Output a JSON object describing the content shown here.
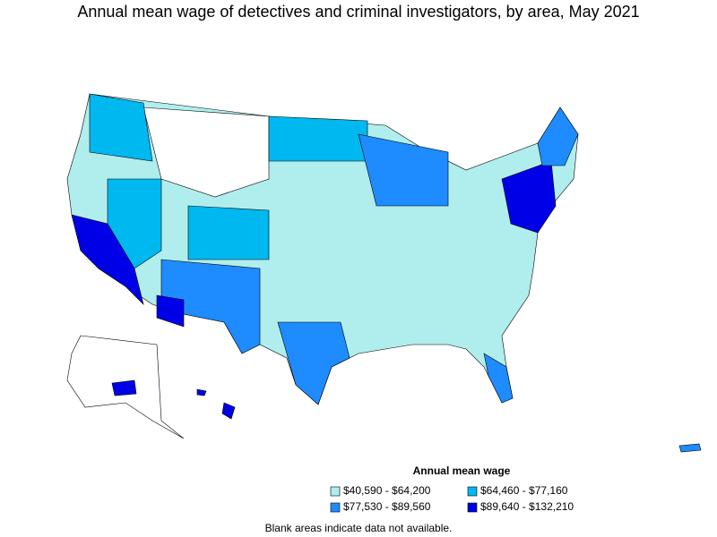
{
  "title": "Annual mean wage of detectives and criminal investigators, by area, May 2021",
  "legend": {
    "title": "Annual mean wage",
    "items": [
      {
        "label": "$40,590 - $64,200",
        "color": "#b0eeee"
      },
      {
        "label": "$64,460 - $77,160",
        "color": "#00b8f0"
      },
      {
        "label": "$77,530 - $89,560",
        "color": "#1e8cff"
      },
      {
        "label": "$89,640 - $132,210",
        "color": "#0000e6"
      }
    ]
  },
  "footnote": "Blank areas indicate data not available."
}
